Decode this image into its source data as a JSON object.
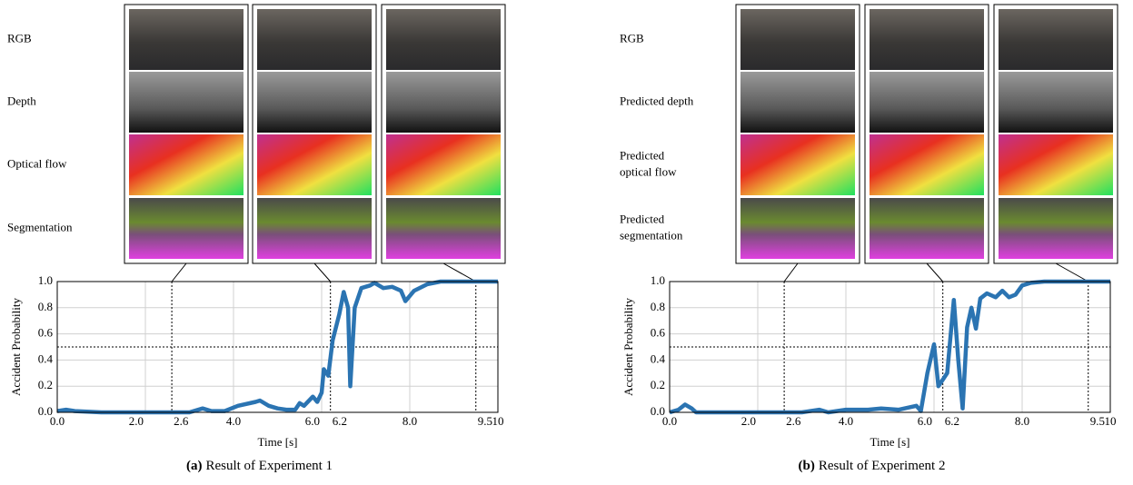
{
  "chart_data": [
    {
      "type": "line",
      "xlabel": "Time [s]",
      "ylabel": "Accident Probability",
      "caption": {
        "label": "(a)",
        "text": "Result of Experiment 1"
      },
      "row_labels": [
        [
          "RGB"
        ],
        [
          "Depth"
        ],
        [
          "Optical flow"
        ],
        [
          "Segmentation"
        ]
      ],
      "x": [
        0,
        0.2,
        0.4,
        1,
        2,
        3,
        3.3,
        3.5,
        3.8,
        4.1,
        4.5,
        4.6,
        4.8,
        5,
        5.2,
        5.4,
        5.5,
        5.6,
        5.8,
        5.9,
        6.0,
        6.05,
        6.15,
        6.25,
        6.4,
        6.5,
        6.6,
        6.65,
        6.75,
        6.9,
        7.1,
        7.2,
        7.4,
        7.6,
        7.8,
        7.9,
        8.1,
        8.4,
        8.7,
        10
      ],
      "series": [
        {
          "color": "#2b74b2",
          "values": [
            0.01,
            0.02,
            0.01,
            0,
            0,
            0,
            0.03,
            0.01,
            0.01,
            0.05,
            0.08,
            0.09,
            0.05,
            0.03,
            0.02,
            0.02,
            0.07,
            0.05,
            0.12,
            0.08,
            0.15,
            0.33,
            0.28,
            0.55,
            0.75,
            0.92,
            0.8,
            0.2,
            0.8,
            0.95,
            0.97,
            0.99,
            0.95,
            0.96,
            0.93,
            0.85,
            0.93,
            0.98,
            1.0,
            1.0
          ]
        }
      ],
      "xlim": [
        0,
        10
      ],
      "ylim": [
        0,
        1
      ],
      "xticks": [
        {
          "value": 0,
          "label": "0.0"
        },
        {
          "value": 2,
          "label": "2.0"
        },
        2.6,
        {
          "value": 4,
          "label": "4.0"
        },
        {
          "value": 6,
          "label": "6.0"
        },
        6.2,
        {
          "value": 8,
          "label": "8.0"
        },
        9.5,
        10
      ],
      "yticks": [
        {
          "value": 0,
          "label": "0.0"
        },
        {
          "value": 0.2,
          "label": "0.2"
        },
        {
          "value": 0.4,
          "label": "0.4"
        },
        {
          "value": 0.6,
          "label": "0.6"
        },
        {
          "value": 0.8,
          "label": "0.8"
        },
        {
          "value": 1,
          "label": "1.0"
        }
      ],
      "grid": true,
      "threshold": 0.5,
      "frame_times": [
        2.6,
        6.2,
        9.5
      ]
    },
    {
      "type": "line",
      "xlabel": "Time [s]",
      "ylabel": "Accident Probability",
      "caption": {
        "label": "(b)",
        "text": "Result of Experiment 2"
      },
      "row_labels": [
        [
          "RGB"
        ],
        [
          "Predicted depth"
        ],
        [
          "Predicted",
          "optical flow"
        ],
        [
          "Predicted",
          "segmentation"
        ]
      ],
      "x": [
        0,
        0.2,
        0.35,
        0.5,
        0.6,
        3,
        3.4,
        3.6,
        4.0,
        4.5,
        4.8,
        5.2,
        5.6,
        5.7,
        5.85,
        6.0,
        6.1,
        6.2,
        6.3,
        6.45,
        6.55,
        6.65,
        6.75,
        6.85,
        6.95,
        7.05,
        7.2,
        7.4,
        7.55,
        7.7,
        7.85,
        8.0,
        8.2,
        8.5,
        10
      ],
      "series": [
        {
          "color": "#2b74b2",
          "values": [
            0,
            0.02,
            0.06,
            0.03,
            0,
            0,
            0.02,
            0,
            0.02,
            0.02,
            0.03,
            0.02,
            0.05,
            0.01,
            0.3,
            0.52,
            0.2,
            0.25,
            0.3,
            0.86,
            0.4,
            0.03,
            0.65,
            0.8,
            0.64,
            0.87,
            0.91,
            0.88,
            0.93,
            0.88,
            0.9,
            0.97,
            0.99,
            1.0,
            1.0
          ]
        }
      ],
      "xlim": [
        0,
        10
      ],
      "ylim": [
        0,
        1
      ],
      "xticks": [
        {
          "value": 0,
          "label": "0.0"
        },
        {
          "value": 2,
          "label": "2.0"
        },
        2.6,
        {
          "value": 4,
          "label": "4.0"
        },
        {
          "value": 6,
          "label": "6.0"
        },
        6.2,
        {
          "value": 8,
          "label": "8.0"
        },
        9.5,
        10
      ],
      "yticks": [
        {
          "value": 0,
          "label": "0.0"
        },
        {
          "value": 0.2,
          "label": "0.2"
        },
        {
          "value": 0.4,
          "label": "0.4"
        },
        {
          "value": 0.6,
          "label": "0.6"
        },
        {
          "value": 0.8,
          "label": "0.8"
        },
        {
          "value": 1,
          "label": "1.0"
        }
      ],
      "grid": true,
      "threshold": 0.5,
      "frame_times": [
        2.6,
        6.2,
        9.5
      ]
    }
  ]
}
